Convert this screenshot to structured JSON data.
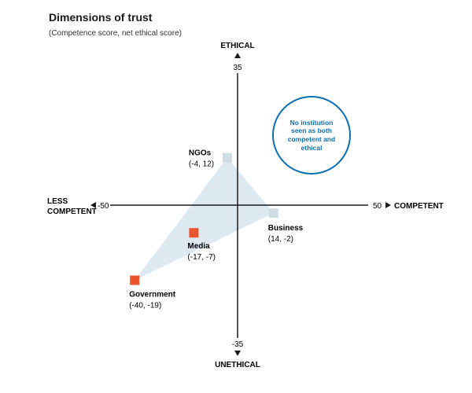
{
  "chart_data": {
    "type": "scatter",
    "title": "Dimensions of trust",
    "subtitle": "(Competence score, net ethical score)",
    "xlim": [
      -50,
      50
    ],
    "ylim": [
      -35,
      35
    ],
    "x_tick_labels": {
      "min": "-50",
      "max": "50"
    },
    "y_tick_labels": {
      "min": "-35",
      "max": "35"
    },
    "axis_labels": {
      "top": "ETHICAL",
      "bottom": "UNETHICAL",
      "left_line1": "LESS",
      "left_line2": "COMPETENT",
      "right": "COMPETENT"
    },
    "points": [
      {
        "name": "NGOs",
        "label": "(-4, 12)",
        "x": -4,
        "y": 12,
        "color": "#cfdde6"
      },
      {
        "name": "Business",
        "label": "(14, -2)",
        "x": 14,
        "y": -2,
        "color": "#cfdde6"
      },
      {
        "name": "Media",
        "label": "(-17, -7)",
        "x": -17,
        "y": -7,
        "color": "#e8552f"
      },
      {
        "name": "Government",
        "label": "(-40, -19)",
        "x": -40,
        "y": -19,
        "color": "#e8552f"
      }
    ],
    "shaded_triangle": [
      "NGOs",
      "Business",
      "Government"
    ],
    "triangle_color": "#dde9f1",
    "annotation": "No institution seen as both competent and ethical",
    "annotation_color": "#0a6fb0"
  }
}
